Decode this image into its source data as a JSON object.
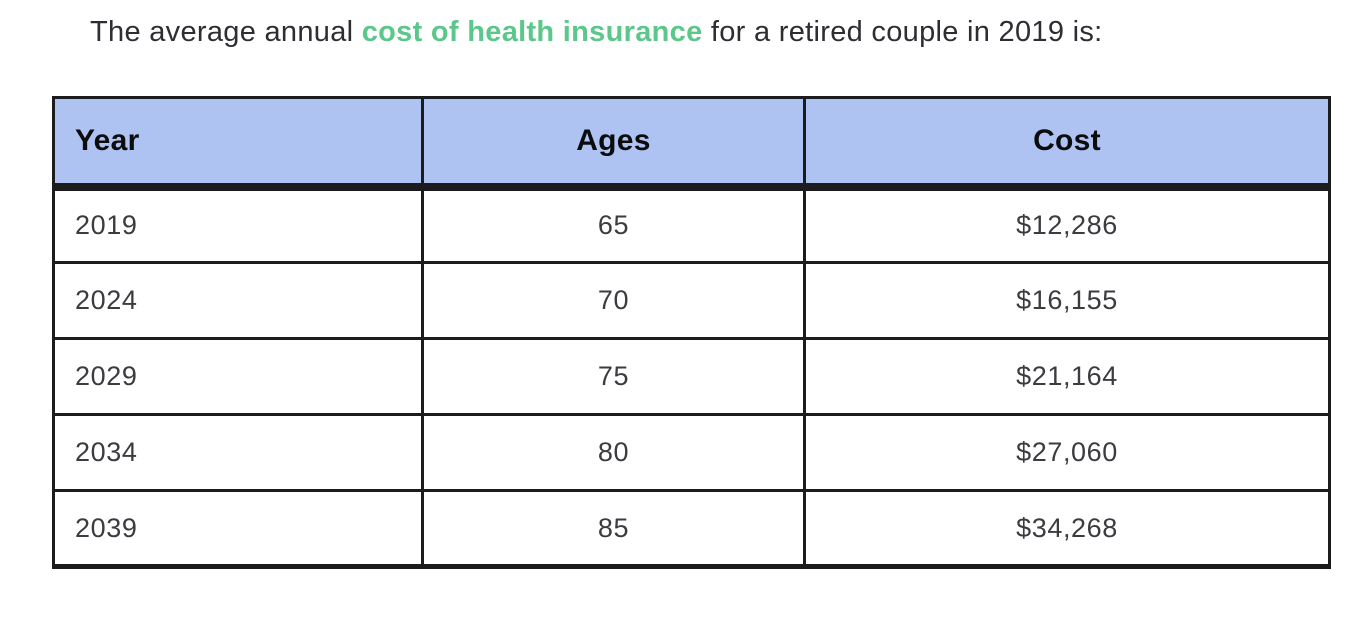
{
  "title": {
    "prefix": "The average annual ",
    "highlight": "cost of health insurance",
    "suffix": " for a retired couple in 2019 is:",
    "highlight_color": "#5cc78a",
    "text_color": "#2d2d33"
  },
  "table": {
    "header_bg": "#aec3f1",
    "border_color": "#1c1c1e",
    "columns": [
      "Year",
      "Ages",
      "Cost"
    ],
    "rows": [
      {
        "year": "2019",
        "ages": "65",
        "cost": "$12,286"
      },
      {
        "year": "2024",
        "ages": "70",
        "cost": "$16,155"
      },
      {
        "year": "2029",
        "ages": "75",
        "cost": "$21,164"
      },
      {
        "year": "2034",
        "ages": "80",
        "cost": "$27,060"
      },
      {
        "year": "2039",
        "ages": "85",
        "cost": "$34,268"
      }
    ]
  },
  "chart_data": {
    "type": "table",
    "title": "The average annual cost of health insurance for a retired couple in 2019 is:",
    "columns": [
      "Year",
      "Ages",
      "Cost"
    ],
    "years": [
      2019,
      2024,
      2029,
      2034,
      2039
    ],
    "ages": [
      65,
      70,
      75,
      80,
      85
    ],
    "costs_usd": [
      12286,
      16155,
      21164,
      27060,
      34268
    ],
    "rows": [
      [
        "2019",
        "65",
        "$12,286"
      ],
      [
        "2024",
        "70",
        "$16,155"
      ],
      [
        "2029",
        "75",
        "$21,164"
      ],
      [
        "2034",
        "80",
        "$27,060"
      ],
      [
        "2039",
        "85",
        "$34,268"
      ]
    ]
  }
}
